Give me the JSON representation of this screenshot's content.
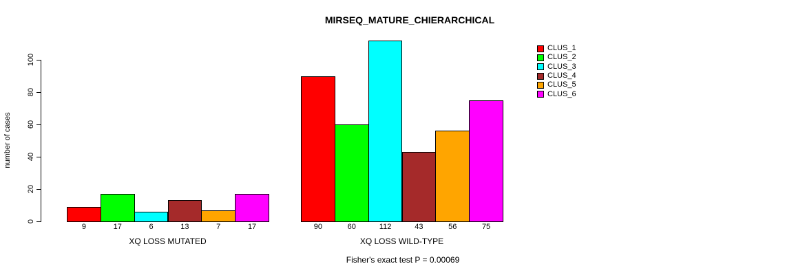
{
  "chart_data": {
    "type": "bar",
    "title": "MIRSEQ_MATURE_CHIERARCHICAL",
    "ylabel": "number of cases",
    "xlabel": "",
    "ylim": [
      0,
      100
    ],
    "yticks": [
      0,
      20,
      40,
      60,
      80,
      100
    ],
    "grid": false,
    "legend_position": "right",
    "series": [
      {
        "name": "CLUS_1",
        "color": "#FF0000"
      },
      {
        "name": "CLUS_2",
        "color": "#00FF00"
      },
      {
        "name": "CLUS_3",
        "color": "#00FFFF"
      },
      {
        "name": "CLUS_4",
        "color": "#A52A2A"
      },
      {
        "name": "CLUS_5",
        "color": "#FFA500"
      },
      {
        "name": "CLUS_6",
        "color": "#FF00FF"
      }
    ],
    "groups": [
      {
        "label": "XQ LOSS MUTATED",
        "values": [
          9,
          17,
          6,
          13,
          7,
          17
        ]
      },
      {
        "label": "XQ LOSS WILD-TYPE",
        "values": [
          90,
          60,
          112,
          43,
          56,
          75
        ]
      }
    ],
    "annotation": "Fisher's exact test P = 0.00069"
  }
}
